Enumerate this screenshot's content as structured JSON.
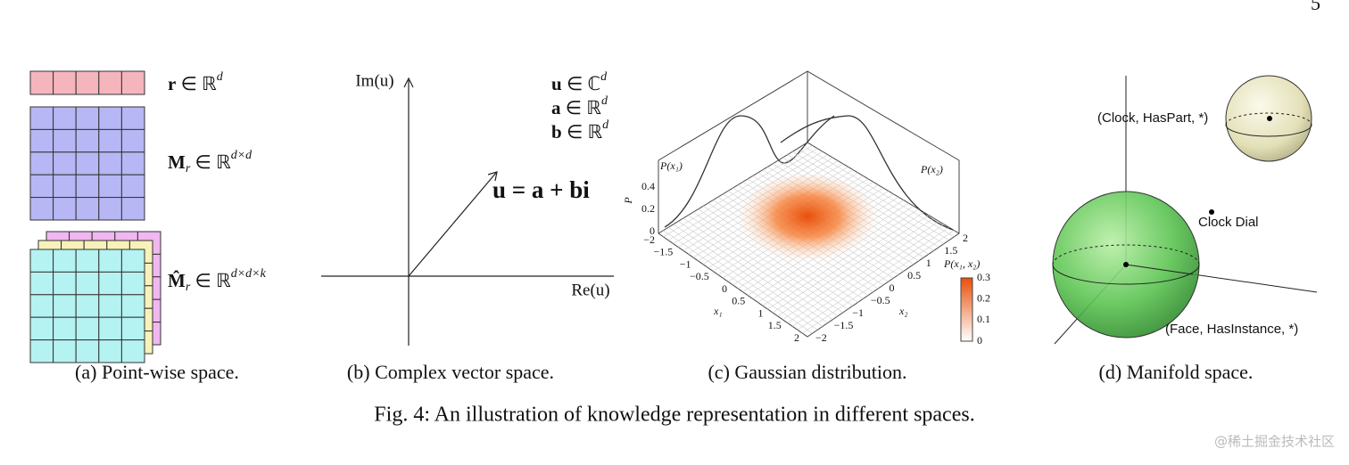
{
  "page_number": "5",
  "panel_a": {
    "r_label": {
      "main": "r",
      "rel": " ∈ ℝ",
      "sup": "d"
    },
    "m_label": {
      "main": "M",
      "sub": "r",
      "rel": " ∈ ℝ",
      "sup": "d×d"
    },
    "mhat_label": {
      "main": "M̂",
      "sub": "r",
      "rel": " ∈ ℝ",
      "sup": "d×d×k"
    },
    "caption": "(a) Point-wise space."
  },
  "panel_b": {
    "im_axis": "Im(u)",
    "re_axis": "Re(u)",
    "u_def": {
      "main": "u",
      "rel": " ∈ ℂ",
      "sup": "d"
    },
    "a_def": {
      "main": "a",
      "rel": " ∈ ℝ",
      "sup": "d"
    },
    "b_def": {
      "main": "b",
      "rel": " ∈ ℝ",
      "sup": "d"
    },
    "equation": "u = a + bi",
    "caption": "(b) Complex vector space."
  },
  "panel_c": {
    "p_x1": "P(x₁)",
    "p_x2": "P(x₂)",
    "z_axis": "P",
    "x1_axis": "x₁",
    "x2_axis": "x₂",
    "colorbar_title": "P(x₁, x₂)",
    "z_ticks": [
      "0",
      "0.2",
      "0.4"
    ],
    "x1_ticks": [
      "−2",
      "−1.5",
      "−1",
      "−0.5",
      "0",
      "0.5",
      "1",
      "1.5",
      "2"
    ],
    "x2_ticks": [
      "−2",
      "−1.5",
      "−1",
      "−0.5",
      "0",
      "0.5",
      "1",
      "1.5",
      "2"
    ],
    "colorbar_ticks": [
      "0",
      "0.1",
      "0.2",
      "0.3"
    ],
    "caption": "(c) Gaussian distribution."
  },
  "panel_d": {
    "clock_haspart": "(Clock, HasPart, *)",
    "clock_dial": "Clock Dial",
    "face_hasinstance": "(Face, HasInstance, *)",
    "caption": "(d) Manifold space."
  },
  "figure_caption": "Fig. 4: An illustration of knowledge representation in different spaces.",
  "watermark": "@稀土掘金技术社区"
}
